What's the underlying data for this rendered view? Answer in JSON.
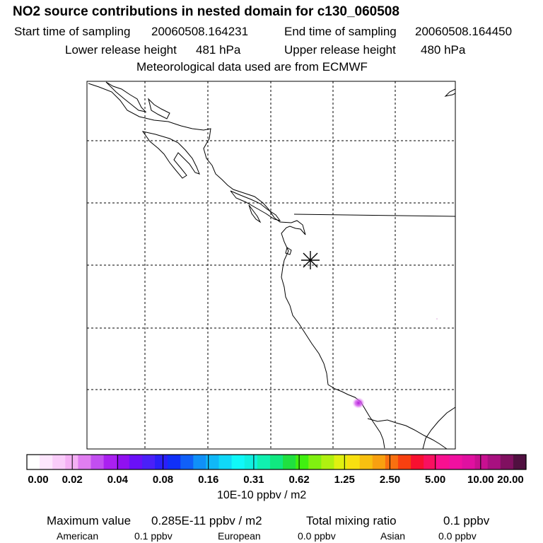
{
  "header": {
    "title": "NO2 source contributions in nested domain for c130_060508",
    "start_label": "Start time of sampling",
    "start_value": "20060508.164231",
    "end_label": "End time of sampling",
    "end_value": "20060508.164450",
    "lower_label": "Lower release height",
    "lower_value": "481 hPa",
    "upper_label": "Upper release height",
    "upper_value": "480 hPa",
    "met_note": "Meteorological data used are from ECMWF"
  },
  "map": {
    "release_marker": "asterisk-icon",
    "plume_color": "#d040e0"
  },
  "colorbar": {
    "ticks": [
      "0.00",
      "0.02",
      "0.04",
      "0.08",
      "0.16",
      "0.31",
      "0.62",
      "1.25",
      "2.50",
      "5.00",
      "10.00",
      "20.00"
    ],
    "units": "10E-10 ppbv / m2",
    "colors": [
      "#ffffff",
      "#fde6fd",
      "#f9ccf9",
      "#f4b0f4",
      "#e07ef0",
      "#c24ef0",
      "#aa20f0",
      "#9010f0",
      "#6a10f8",
      "#4a20f8",
      "#2a20f8",
      "#1030f8",
      "#1060f8",
      "#1090f8",
      "#10b8f8",
      "#10d8f8",
      "#10f8f8",
      "#10f0e0",
      "#10f0b0",
      "#10e880",
      "#20e040",
      "#40f010",
      "#80f010",
      "#b0f010",
      "#e0f010",
      "#f8e010",
      "#f8c010",
      "#f8a010",
      "#f87010",
      "#f84010",
      "#f81030",
      "#f81060",
      "#f81090",
      "#f010a0",
      "#e010a0",
      "#c81090",
      "#a81080",
      "#801060",
      "#501040"
    ]
  },
  "summary": {
    "max_label": "Maximum value",
    "max_value": "0.285E-11 ppbv / m2",
    "total_label": "Total mixing ratio",
    "total_value": "0.1 ppbv",
    "american_label": "American",
    "american_value": "0.1 ppbv",
    "european_label": "European",
    "european_value": "0.0 ppbv",
    "asian_label": "Asian",
    "asian_value": "0.0 ppbv"
  }
}
